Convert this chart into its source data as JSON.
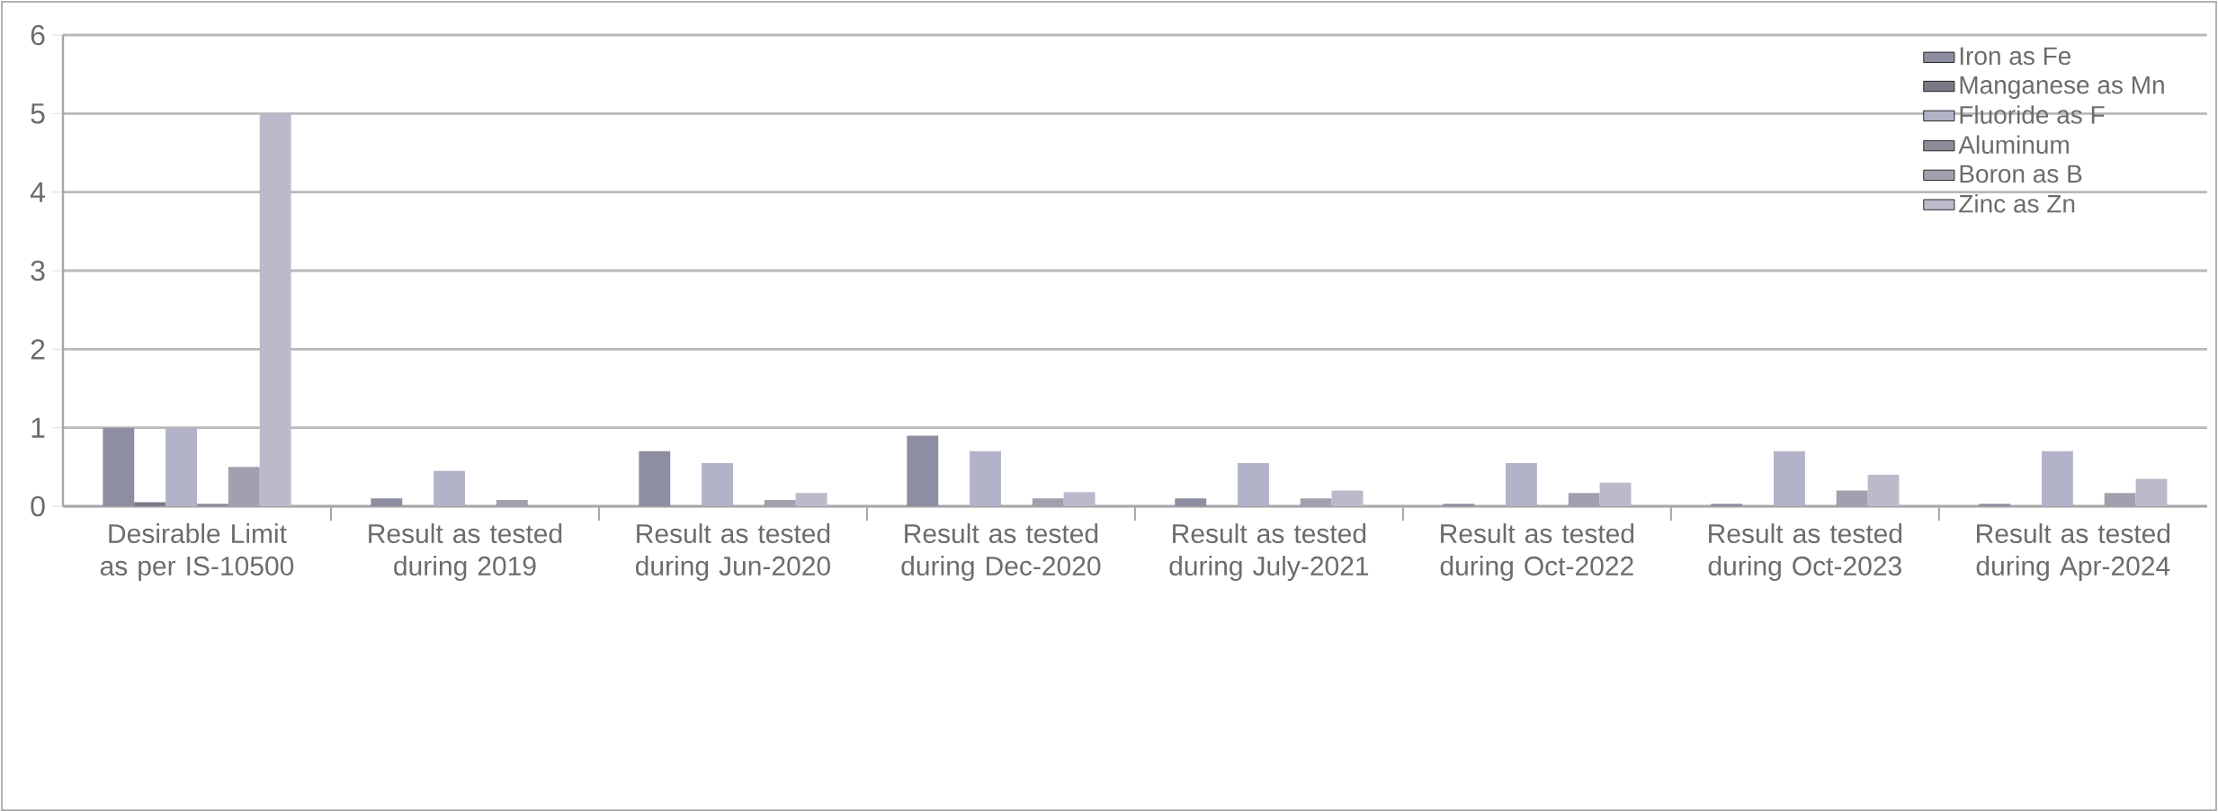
{
  "chart_data": {
    "type": "bar",
    "categories": [
      "Desirable Limit as per IS-10500",
      "Result as tested during 2019",
      "Result as tested during Jun-2020",
      "Result as tested during Dec-2020",
      "Result as tested during July-2021",
      "Result as tested during Oct-2022",
      "Result as tested during Oct-2023",
      "Result as tested during Apr-2024"
    ],
    "series": [
      {
        "name": "Iron as Fe",
        "color": "#8e8ea2",
        "values": [
          1,
          0.1,
          0.7,
          0.9,
          0.1,
          0.03,
          0.03,
          0.03
        ]
      },
      {
        "name": "Manganese as Mn",
        "color": "#7a7a86",
        "values": [
          0.05,
          0,
          0,
          0,
          0,
          0,
          0,
          0
        ]
      },
      {
        "name": "Fluoride as F",
        "color": "#b2b2c8",
        "values": [
          1,
          0.45,
          0.55,
          0.7,
          0.55,
          0.55,
          0.7,
          0.7
        ]
      },
      {
        "name": "Aluminum",
        "color": "#8c8c96",
        "values": [
          0.03,
          0,
          0,
          0,
          0,
          0,
          0,
          0
        ]
      },
      {
        "name": "Boron as B",
        "color": "#a0a0ae",
        "values": [
          0.5,
          0.08,
          0.08,
          0.1,
          0.1,
          0.17,
          0.2,
          0.17
        ]
      },
      {
        "name": "Zinc as Zn",
        "color": "#babaca",
        "values": [
          5,
          0,
          0.17,
          0.18,
          0.2,
          0.3,
          0.4,
          0.35
        ]
      }
    ],
    "ylim": [
      0,
      6
    ],
    "yticks": [
      0,
      1,
      2,
      3,
      4,
      5,
      6
    ],
    "grid": "y",
    "legend": "top right"
  }
}
